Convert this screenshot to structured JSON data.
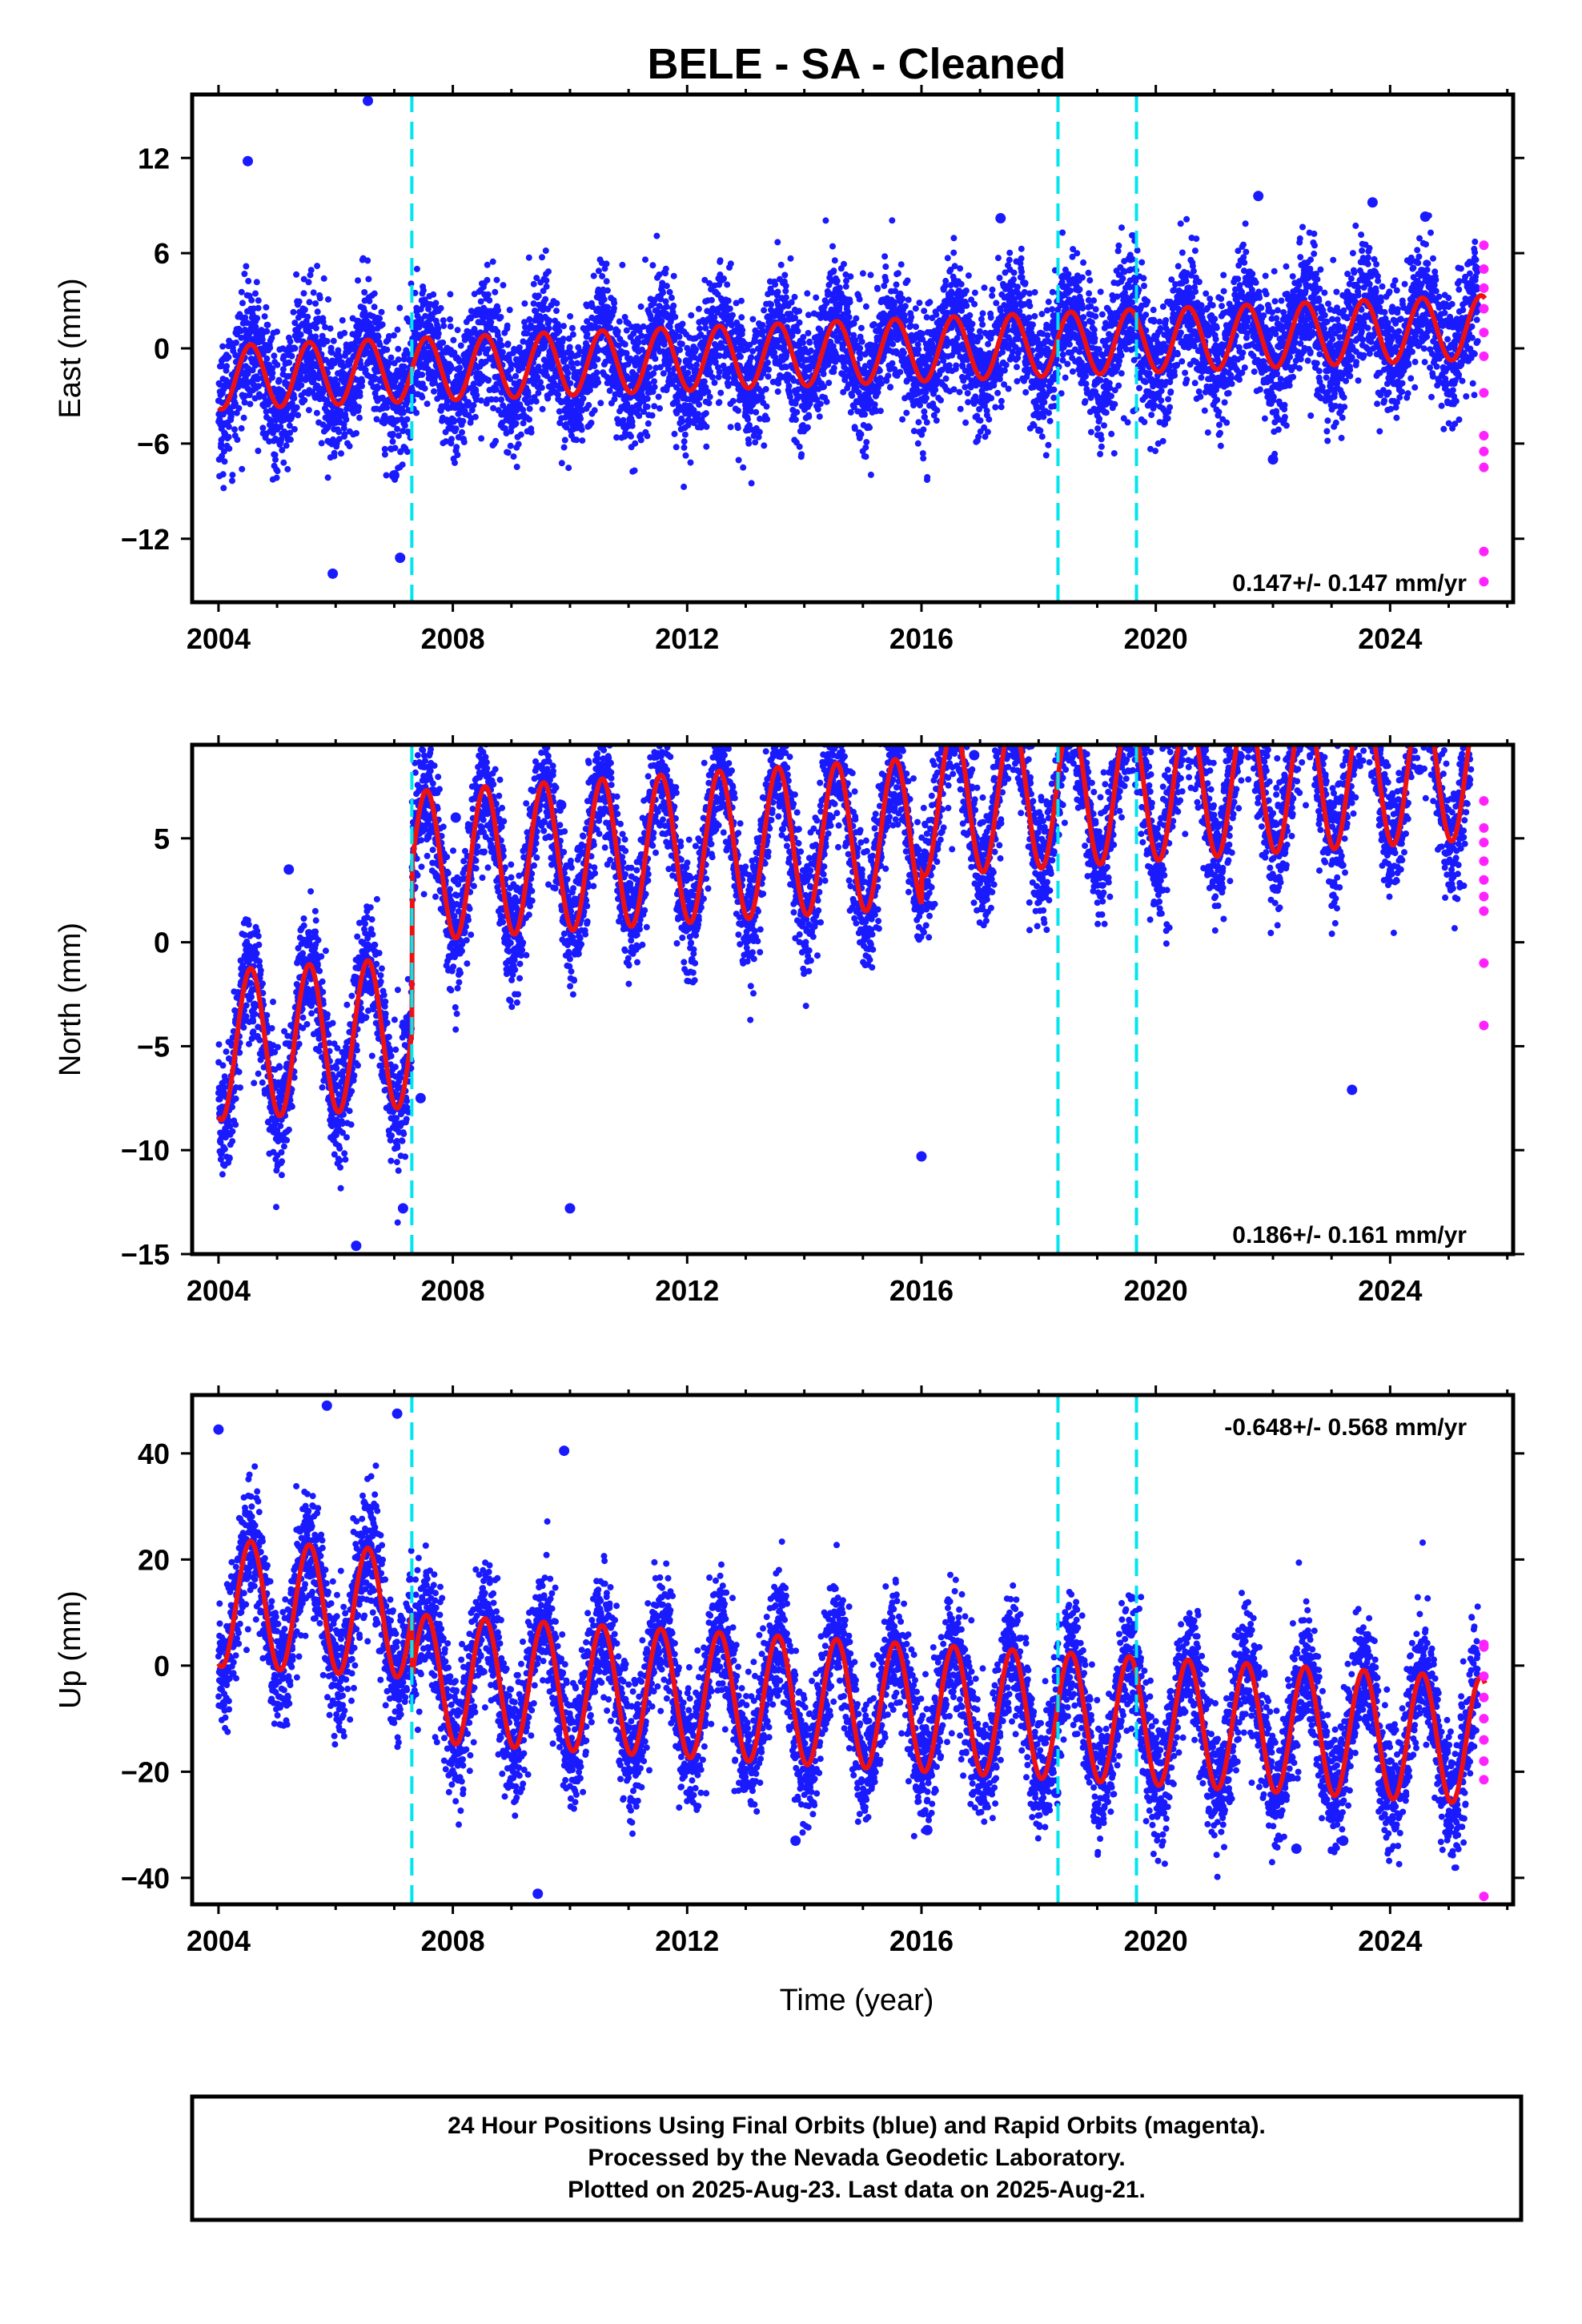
{
  "title": "BELE  - SA - Cleaned",
  "colors": {
    "final_orbits": "#1a1aff",
    "rapid_orbits": "#ff22ff",
    "model": "#ee1111",
    "equipment_change": "#00e5ee"
  },
  "chart_data": [
    {
      "type": "scatter",
      "panel": "east",
      "ylabel": "East (mm)",
      "ylim": [
        -16,
        16
      ],
      "yticks": [
        "12",
        "6",
        "0",
        "-6",
        "-12"
      ],
      "xlim": [
        2003.55,
        2026.1
      ],
      "xticks": [
        "2004",
        "2008",
        "2012",
        "2016",
        "2020",
        "2024"
      ],
      "rate_text": "0.147+/- 0.147 mm/yr",
      "equipment_change_years": [
        2007.3,
        2018.33,
        2019.67
      ],
      "model": {
        "rate": 0.147,
        "offset": -0.3,
        "annual_amp": 2.0,
        "scatter_sd": 2.0
      },
      "series": [
        {
          "name": "Final Orbits (blue)",
          "x_range": [
            2004.0,
            2025.5
          ]
        },
        {
          "name": "Rapid Orbits (magenta)",
          "x_range": [
            2025.5,
            2025.64
          ]
        }
      ],
      "outliers": [
        {
          "x": 2004.5,
          "y": 11.8
        },
        {
          "x": 2006.55,
          "y": 15.6
        },
        {
          "x": 2005.95,
          "y": -14.2
        },
        {
          "x": 2007.1,
          "y": -13.2
        },
        {
          "x": 2007.0,
          "y": -8.0
        },
        {
          "x": 2021.75,
          "y": 9.6
        },
        {
          "x": 2022.0,
          "y": -7.0
        },
        {
          "x": 2023.7,
          "y": 9.2
        },
        {
          "x": 2024.6,
          "y": 8.3
        },
        {
          "x": 2017.35,
          "y": 8.2
        }
      ],
      "rapid_points": [
        {
          "x": 2025.6,
          "y": 6.5
        },
        {
          "x": 2025.6,
          "y": 5.0
        },
        {
          "x": 2025.6,
          "y": 3.8
        },
        {
          "x": 2025.6,
          "y": 2.5
        },
        {
          "x": 2025.6,
          "y": 1.0
        },
        {
          "x": 2025.6,
          "y": -0.5
        },
        {
          "x": 2025.6,
          "y": -2.8
        },
        {
          "x": 2025.6,
          "y": -5.5
        },
        {
          "x": 2025.6,
          "y": -6.5
        },
        {
          "x": 2025.6,
          "y": -7.5
        },
        {
          "x": 2025.6,
          "y": -12.8
        },
        {
          "x": 2025.6,
          "y": -14.7
        }
      ]
    },
    {
      "type": "scatter",
      "panel": "north",
      "ylabel": "North (mm)",
      "ylim": [
        -15,
        9.5
      ],
      "yticks": [
        "5",
        "0",
        "-5",
        "-10",
        "-15"
      ],
      "xlim": [
        2003.55,
        2026.1
      ],
      "xticks": [
        "2004",
        "2008",
        "2012",
        "2016",
        "2020",
        "2024"
      ],
      "rate_text": "0.186+/- 0.161 mm/yr",
      "equipment_change_years": [
        2007.3,
        2018.33,
        2019.67
      ],
      "model": {
        "rate": 0.186,
        "offset": -3.0,
        "annual_amp": 3.6,
        "scatter_sd": 1.5,
        "steps": [
          {
            "x": 2007.3,
            "dy": 8.0
          },
          {
            "x": 2016.0,
            "dy": 1.5
          }
        ]
      },
      "series": [
        {
          "name": "Final Orbits (blue)",
          "x_range": [
            2004.0,
            2025.5
          ]
        },
        {
          "name": "Rapid Orbits (magenta)",
          "x_range": [
            2025.5,
            2025.64
          ]
        }
      ],
      "outliers": [
        {
          "x": 2005.2,
          "y": 3.5
        },
        {
          "x": 2006.35,
          "y": -14.6
        },
        {
          "x": 2010.0,
          "y": -12.8
        },
        {
          "x": 2016.0,
          "y": -10.3
        },
        {
          "x": 2008.05,
          "y": 6.0
        },
        {
          "x": 2009.85,
          "y": 6.6
        },
        {
          "x": 2016.9,
          "y": 9.0
        },
        {
          "x": 2017.6,
          "y": 9.0
        },
        {
          "x": 2023.35,
          "y": -7.1
        },
        {
          "x": 2024.5,
          "y": 8.3
        },
        {
          "x": 2007.15,
          "y": -12.8
        },
        {
          "x": 2007.45,
          "y": -7.5
        }
      ],
      "rapid_points": [
        {
          "x": 2025.6,
          "y": 6.8
        },
        {
          "x": 2025.6,
          "y": 5.5
        },
        {
          "x": 2025.6,
          "y": 4.8
        },
        {
          "x": 2025.6,
          "y": 3.9
        },
        {
          "x": 2025.6,
          "y": 3.0
        },
        {
          "x": 2025.6,
          "y": 2.2
        },
        {
          "x": 2025.6,
          "y": 1.5
        },
        {
          "x": 2025.6,
          "y": -1.0
        },
        {
          "x": 2025.6,
          "y": -4.0
        }
      ]
    },
    {
      "type": "scatter",
      "panel": "up",
      "ylabel": "Up (mm)",
      "ylim": [
        -45,
        51
      ],
      "yticks": [
        "40",
        "20",
        "0",
        "-20",
        "-40"
      ],
      "xlim": [
        2003.55,
        2026.1
      ],
      "xticks": [
        "2004",
        "2008",
        "2012",
        "2016",
        "2020",
        "2024"
      ],
      "xlabel": "Time (year)",
      "rate_text": "-0.648+/- 0.568 mm/yr",
      "equipment_change_years": [
        2007.3,
        2018.33,
        2019.67
      ],
      "model": {
        "rate": -0.648,
        "offset": 5.0,
        "annual_amp": 12.0,
        "scatter_sd": 6.0,
        "steps": [
          {
            "x": 2007.3,
            "dy": -12.0
          }
        ]
      },
      "series": [
        {
          "name": "Final Orbits (blue)",
          "x_range": [
            2004.0,
            2025.5
          ]
        },
        {
          "name": "Rapid Orbits (magenta)",
          "x_range": [
            2025.5,
            2025.64
          ]
        }
      ],
      "outliers": [
        {
          "x": 2004.0,
          "y": 44.5
        },
        {
          "x": 2005.85,
          "y": 49.0
        },
        {
          "x": 2007.05,
          "y": 47.5
        },
        {
          "x": 2009.45,
          "y": -43.0
        },
        {
          "x": 2009.9,
          "y": 40.5
        },
        {
          "x": 2016.1,
          "y": -31.0
        },
        {
          "x": 2013.85,
          "y": -33.0
        },
        {
          "x": 2018.3,
          "y": -24.0
        },
        {
          "x": 2022.4,
          "y": -34.5
        },
        {
          "x": 2023.2,
          "y": -33.0
        }
      ],
      "rapid_points": [
        {
          "x": 2025.6,
          "y": 4.0
        },
        {
          "x": 2025.6,
          "y": 3.5
        },
        {
          "x": 2025.6,
          "y": -2.0
        },
        {
          "x": 2025.6,
          "y": -6.0
        },
        {
          "x": 2025.6,
          "y": -10.0
        },
        {
          "x": 2025.6,
          "y": -14.0
        },
        {
          "x": 2025.6,
          "y": -18.0
        },
        {
          "x": 2025.6,
          "y": -21.5
        },
        {
          "x": 2025.6,
          "y": -43.5
        }
      ]
    }
  ],
  "footer": {
    "line1": "24 Hour Positions Using Final Orbits (blue) and Rapid Orbits (magenta).",
    "line2": "Processed by the Nevada Geodetic Laboratory.",
    "line3": "Plotted on 2025-Aug-23. Last data on 2025-Aug-21."
  }
}
